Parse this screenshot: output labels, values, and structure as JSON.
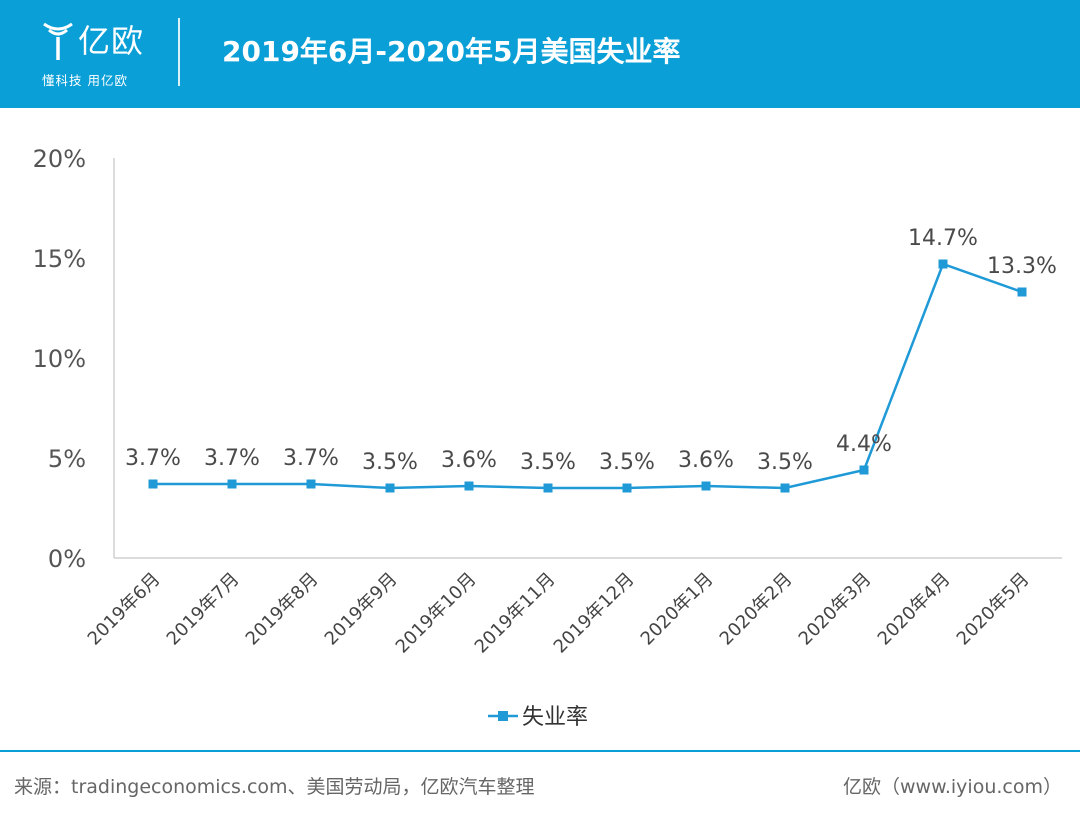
{
  "header": {
    "logo_name": "亿欧",
    "logo_slogan": "懂科技 用亿欧",
    "title": "2019年6月-2020年5月美国失业率"
  },
  "colors": {
    "brand": "#0a9fd7",
    "series": "#1f9ad6"
  },
  "chart_data": {
    "type": "line",
    "title": "2019年6月-2020年5月美国失业率",
    "categories": [
      "2019年6月",
      "2019年7月",
      "2019年8月",
      "2019年9月",
      "2019年10月",
      "2019年11月",
      "2019年12月",
      "2020年1月",
      "2020年2月",
      "2020年3月",
      "2020年4月",
      "2020年5月"
    ],
    "series": [
      {
        "name": "失业率",
        "values": [
          3.7,
          3.7,
          3.7,
          3.5,
          3.6,
          3.5,
          3.5,
          3.6,
          3.5,
          4.4,
          14.7,
          13.3
        ],
        "labels": [
          "3.7%",
          "3.7%",
          "3.7%",
          "3.5%",
          "3.6%",
          "3.5%",
          "3.5%",
          "3.6%",
          "3.5%",
          "4.4%",
          "14.7%",
          "13.3%"
        ],
        "marker": "square"
      }
    ],
    "ylim": [
      0,
      20
    ],
    "y_ticks": [
      "0%",
      "5%",
      "10%",
      "15%",
      "20%"
    ],
    "y_tick_values": [
      0,
      5,
      10,
      15,
      20
    ],
    "grid": false,
    "legend_position": "bottom"
  },
  "footer": {
    "source": "来源：tradingeconomics.com、美国劳动局，亿欧汽车整理",
    "brand": "亿欧（www.iyiou.com）"
  }
}
